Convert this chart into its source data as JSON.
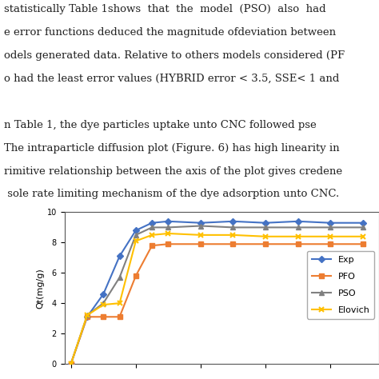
{
  "page_bg": "#F5F5F0",
  "text_lines": [
    "statistically Table 1shows  that  the  model  (PSO)  also  had",
    "e error functions deduced the magnitude ofdeviation between",
    "odels generated data. Relative to others models considered (PF",
    "o had the least error values (HYBRID error < 3.5, SSE< 1 and",
    "",
    "n Table 1, the dye particles uptake unto CNC followed pse",
    "The intraparticle diffusion plot (Figure. 6) has high linearity in",
    "rimitive relationship between the axis of the plot gives credene",
    " sole rate limiting mechanism of the dye adsorption unto CNC."
  ],
  "ylabel": "Qt(mg/g)",
  "ylim": [
    0,
    10
  ],
  "yticks": [
    0,
    2,
    4,
    6,
    8,
    10
  ],
  "series": {
    "Exp": {
      "x": [
        0,
        5,
        10,
        15,
        20,
        25,
        30,
        40,
        50,
        60,
        70,
        80,
        90
      ],
      "y": [
        0.0,
        3.1,
        4.6,
        7.1,
        8.8,
        9.3,
        9.4,
        9.3,
        9.4,
        9.3,
        9.4,
        9.3,
        9.3
      ],
      "color": "#4472C4",
      "marker": "D",
      "markersize": 4,
      "linewidth": 1.5
    },
    "PFO": {
      "x": [
        0,
        5,
        10,
        15,
        20,
        25,
        30,
        40,
        50,
        60,
        70,
        80,
        90
      ],
      "y": [
        0.0,
        3.1,
        3.1,
        3.1,
        5.8,
        7.8,
        7.9,
        7.9,
        7.9,
        7.9,
        7.9,
        7.9,
        7.9
      ],
      "color": "#ED7D31",
      "marker": "s",
      "markersize": 4,
      "linewidth": 1.5
    },
    "PSO": {
      "x": [
        0,
        5,
        10,
        15,
        20,
        25,
        30,
        40,
        50,
        60,
        70,
        80,
        90
      ],
      "y": [
        0.0,
        3.2,
        4.0,
        5.7,
        8.5,
        9.0,
        9.0,
        9.1,
        9.0,
        9.0,
        9.0,
        9.0,
        9.0
      ],
      "color": "#808080",
      "marker": "^",
      "markersize": 4,
      "linewidth": 1.5
    },
    "Elovich": {
      "x": [
        0,
        5,
        10,
        15,
        20,
        25,
        30,
        40,
        50,
        60,
        70,
        80,
        90
      ],
      "y": [
        0.0,
        3.2,
        3.9,
        4.0,
        8.1,
        8.5,
        8.6,
        8.5,
        8.5,
        8.4,
        8.4,
        8.4,
        8.4
      ],
      "color": "#FFC000",
      "marker": "x",
      "markersize": 5,
      "linewidth": 1.5
    }
  },
  "legend_order": [
    "Exp",
    "PFO",
    "PSO",
    "Elovich"
  ],
  "legend_fontsize": 8,
  "axis_fontsize": 8,
  "tick_fontsize": 7
}
